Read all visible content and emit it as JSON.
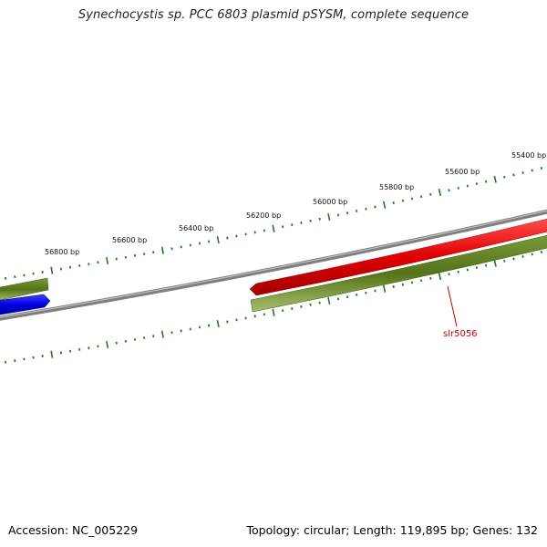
{
  "title": "Synechocystis sp. PCC 6803 plasmid pSYSM, complete sequence",
  "footer": {
    "accession": "Accession: NC_005229",
    "stats": "Topology: circular; Length: 119,895 bp; Genes: 132"
  },
  "scale": {
    "unit": "bp",
    "labels": [
      "55400 bp",
      "55600 bp",
      "55800 bp",
      "56000 bp",
      "56200 bp",
      "56400 bp",
      "56600 bp",
      "56800 bp"
    ]
  },
  "gene_label": "slr5056",
  "colors": {
    "backbone": "#808080",
    "forward_cds": "#dd0000",
    "reverse_cds": "#0000e0",
    "orf": "#5a7d1a",
    "ticks": "#1f7a1f",
    "gene_label": "#cc0000"
  }
}
